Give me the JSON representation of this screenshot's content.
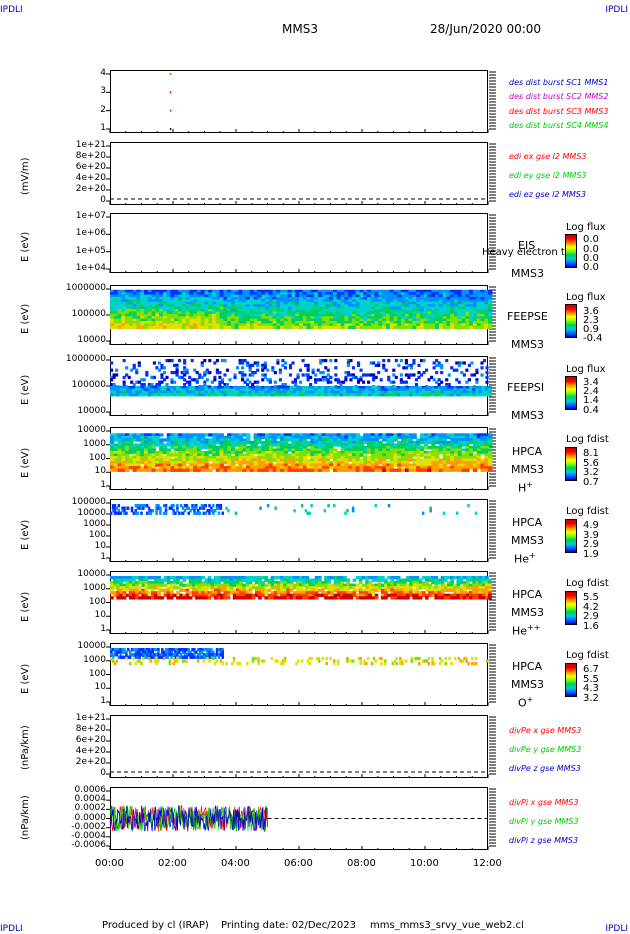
{
  "header": {
    "corner_tl": "IPDLI",
    "corner_tr": "IPDLI",
    "corner_bl": "IPDLI",
    "corner_br": "IPDLI",
    "mission": "MMS3",
    "date": "28/Jun/2020 00:00"
  },
  "footer": {
    "produced": "Produced by cl (IRAP)",
    "printed": "Printing date: 02/Dec/2023",
    "file": "mms_mms3_srvy_vue_web2.cl"
  },
  "colors": {
    "mms1": "#0000cc",
    "mms2": "#cc00cc",
    "mms3": "#ff0000",
    "mms4": "#00cc00",
    "x": "#ff0000",
    "y": "#00cc00",
    "z": "#0000cc"
  },
  "chart_data": [
    {
      "type": "scatter",
      "panel": "burst",
      "yticks": [
        "4",
        "3",
        "2",
        "1"
      ],
      "legend": [
        "des dist burst SC1 MMS1",
        "des dist burst SC2 MMS2",
        "des dist burst SC3 MMS3",
        "des dist burst SC4 MMS4"
      ],
      "points": [
        {
          "t": 1.9,
          "sc": 4
        },
        {
          "t": 1.9,
          "sc": 3
        },
        {
          "t": 1.9,
          "sc": 2
        },
        {
          "t": 1.9,
          "sc": 1
        }
      ]
    },
    {
      "type": "line",
      "panel": "edi",
      "ylabel": "(mV/m)",
      "yticks": [
        "1e+21",
        "8e+20",
        "6e+20",
        "4e+20",
        "2e+20",
        "0"
      ],
      "legend": [
        "edi ex gse l2 MMS3",
        "edi ey gse l2 MMS3",
        "edi ez gse l2 MMS3"
      ]
    },
    {
      "type": "heatmap",
      "panel": "eis",
      "ylabel": "E (eV)",
      "yticks": [
        "1e+07",
        "1e+06",
        "1e+05",
        "1e+04"
      ],
      "instrument": "EIS",
      "extra": "Heavy electron to",
      "sat": "MMS3",
      "cbar_title": "Log flux",
      "cbar": [
        "0.0",
        "0.0",
        "0.0",
        "0.0"
      ]
    },
    {
      "type": "heatmap",
      "panel": "feepse",
      "ylabel": "E (eV)",
      "yticks": [
        "1000000",
        "100000",
        "10000"
      ],
      "instrument": "FEEPSE",
      "sat": "MMS3",
      "cbar_title": "Log flux",
      "cbar": [
        "3.6",
        "2.3",
        "0.9",
        "-0.4"
      ]
    },
    {
      "type": "heatmap",
      "panel": "feepsi",
      "ylabel": "E (eV)",
      "yticks": [
        "1000000",
        "100000",
        "10000"
      ],
      "instrument": "FEEPSI",
      "sat": "MMS3",
      "cbar_title": "Log flux",
      "cbar": [
        "3.4",
        "2.4",
        "1.4",
        "0.4"
      ]
    },
    {
      "type": "heatmap",
      "panel": "hpca_h",
      "ylabel": "E (eV)",
      "yticks": [
        "10000",
        "1000",
        "100",
        "10",
        "1"
      ],
      "instrument": "HPCA",
      "sat": "MMS3",
      "species": "H",
      "charge": "+",
      "cbar_title": "Log fdist",
      "cbar": [
        "8.1",
        "5.6",
        "3.2",
        "0.7"
      ]
    },
    {
      "type": "heatmap",
      "panel": "hpca_he",
      "ylabel": "E (eV)",
      "yticks": [
        "100000",
        "10000",
        "1000",
        "100",
        "10",
        "1"
      ],
      "instrument": "HPCA",
      "sat": "MMS3",
      "species": "He",
      "charge": "+",
      "cbar_title": "Log fdist",
      "cbar": [
        "4.9",
        "3.9",
        "2.9",
        "1.9"
      ]
    },
    {
      "type": "heatmap",
      "panel": "hpca_he2",
      "ylabel": "E (eV)",
      "yticks": [
        "10000",
        "1000",
        "100",
        "10",
        "1"
      ],
      "instrument": "HPCA",
      "sat": "MMS3",
      "species": "He",
      "charge": "++",
      "cbar_title": "Log fdist",
      "cbar": [
        "5.5",
        "4.2",
        "2.9",
        "1.6"
      ]
    },
    {
      "type": "heatmap",
      "panel": "hpca_o",
      "ylabel": "E (eV)",
      "yticks": [
        "10000",
        "1000",
        "100",
        "10",
        "1"
      ],
      "instrument": "HPCA",
      "sat": "MMS3",
      "species": "O",
      "charge": "+",
      "cbar_title": "Log fdist",
      "cbar": [
        "6.7",
        "5.5",
        "4.3",
        "3.2"
      ]
    },
    {
      "type": "line",
      "panel": "divpe",
      "ylabel": "(nPa/km)",
      "yticks": [
        "1e+21",
        "8e+20",
        "6e+20",
        "4e+20",
        "2e+20",
        "0"
      ],
      "legend": [
        "divPe x gse MMS3",
        "divPe y gse MMS3",
        "divPe z gse MMS3"
      ]
    },
    {
      "type": "line",
      "panel": "divpi",
      "ylabel": "(nPa/km)",
      "yticks": [
        "0.0006",
        "0.0004",
        "0.0002",
        "0.0000",
        "-0.0002",
        "-0.0004",
        "-0.0006"
      ],
      "legend": [
        "divPi x gse MMS3",
        "divPi y gse MMS3",
        "divPi z gse MMS3"
      ],
      "data_end_hour": 5.0
    }
  ],
  "xaxis": {
    "ticks": [
      "00:00",
      "02:00",
      "04:00",
      "06:00",
      "08:00",
      "10:00",
      "12:00"
    ],
    "range": [
      0,
      12
    ]
  }
}
